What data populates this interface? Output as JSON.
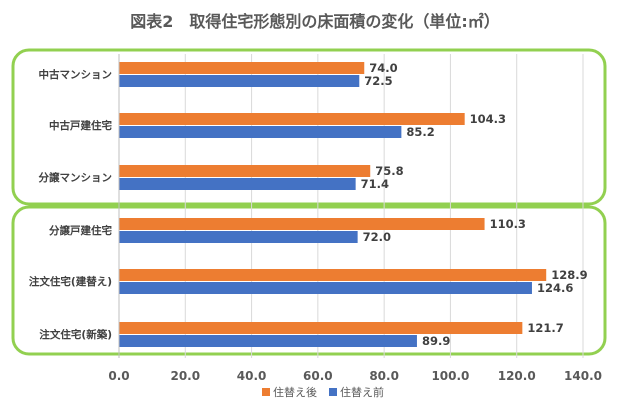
{
  "chart_data": {
    "type": "bar",
    "orientation": "horizontal",
    "title": "図表2　取得住宅形態別の床面積の変化（単位:㎡）",
    "categories": [
      "中古マンション",
      "中古戸建住宅",
      "分譲マンション",
      "分譲戸建住宅",
      "注文住宅(建替え)",
      "注文住宅(新築)"
    ],
    "series": [
      {
        "name": "住替え後",
        "color": "#ED7D31",
        "values": [
          74.0,
          104.3,
          75.8,
          110.3,
          128.9,
          121.7
        ]
      },
      {
        "name": "住替え前",
        "color": "#4472C4",
        "values": [
          72.5,
          85.2,
          71.4,
          72.0,
          124.6,
          89.9
        ]
      }
    ],
    "xlim": [
      0,
      140
    ],
    "x_ticks": [
      "0.0",
      "20.0",
      "40.0",
      "60.0",
      "80.0",
      "100.0",
      "120.0",
      "140.0"
    ],
    "grid": "vertical",
    "legend": "bottom-center",
    "group_box_color": "#92D050",
    "groups": [
      [
        0,
        1,
        2
      ],
      [
        3,
        4,
        5
      ]
    ]
  }
}
